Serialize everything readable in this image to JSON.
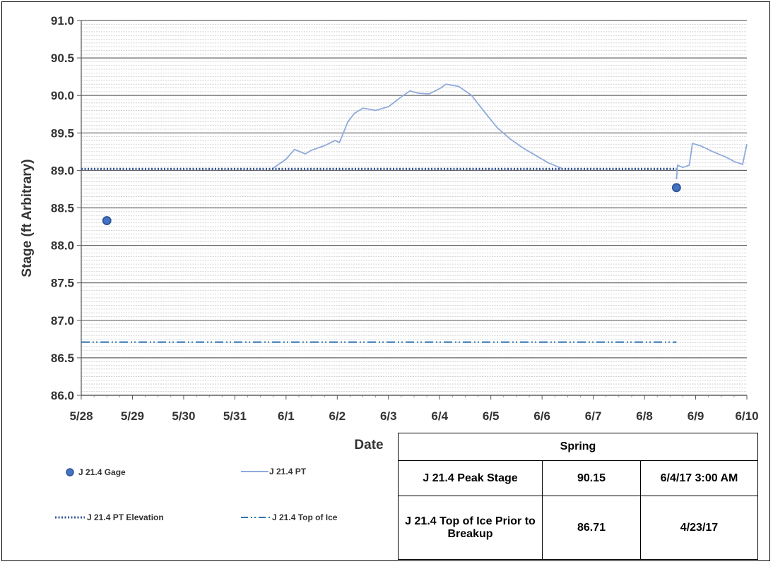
{
  "chart_data": {
    "type": "line",
    "xlabel": "Date",
    "ylabel": "Stage (ft Arbitrary)",
    "x_tick_labels": [
      "5/28",
      "5/29",
      "5/30",
      "5/31",
      "6/1",
      "6/2",
      "6/3",
      "6/4",
      "6/5",
      "6/6",
      "6/7",
      "6/8",
      "6/9",
      "6/10"
    ],
    "xlim": [
      "2017-05-28",
      "2017-06-10"
    ],
    "ylim": [
      86.0,
      91.0
    ],
    "y_major_step": 0.5,
    "y_tick_labels": [
      "86.0",
      "86.5",
      "87.0",
      "87.5",
      "88.0",
      "88.5",
      "89.0",
      "89.5",
      "90.0",
      "90.5",
      "91.0"
    ],
    "y_minor_step": 0.05,
    "grid": "major and minor horizontal",
    "legend_position": "bottom-left",
    "series": [
      {
        "name": "J 21.4 Gage",
        "style": "markers",
        "color": "#4472C4",
        "points": [
          {
            "x": "2017-05-28 12:00",
            "y": 88.33
          },
          {
            "x": "2017-06-08 15:00",
            "y": 88.77
          }
        ]
      },
      {
        "name": "J 21.4 PT",
        "style": "line",
        "color": "#8FAADC",
        "points": [
          {
            "x": "2017-05-31 18:00",
            "y": 89.03
          },
          {
            "x": "2017-06-01 00:00",
            "y": 89.15
          },
          {
            "x": "2017-06-01 04:00",
            "y": 89.28
          },
          {
            "x": "2017-06-01 09:00",
            "y": 89.22
          },
          {
            "x": "2017-06-01 12:00",
            "y": 89.27
          },
          {
            "x": "2017-06-01 18:00",
            "y": 89.33
          },
          {
            "x": "2017-06-01 23:00",
            "y": 89.4
          },
          {
            "x": "2017-06-02 01:00",
            "y": 89.37
          },
          {
            "x": "2017-06-02 05:00",
            "y": 89.65
          },
          {
            "x": "2017-06-02 08:00",
            "y": 89.76
          },
          {
            "x": "2017-06-02 12:00",
            "y": 89.83
          },
          {
            "x": "2017-06-02 18:00",
            "y": 89.8
          },
          {
            "x": "2017-06-03 00:00",
            "y": 89.85
          },
          {
            "x": "2017-06-03 06:00",
            "y": 89.98
          },
          {
            "x": "2017-06-03 10:00",
            "y": 90.06
          },
          {
            "x": "2017-06-03 14:00",
            "y": 90.03
          },
          {
            "x": "2017-06-03 19:00",
            "y": 90.02
          },
          {
            "x": "2017-06-04 00:00",
            "y": 90.09
          },
          {
            "x": "2017-06-04 03:00",
            "y": 90.15
          },
          {
            "x": "2017-06-04 09:00",
            "y": 90.12
          },
          {
            "x": "2017-06-04 15:00",
            "y": 90.0
          },
          {
            "x": "2017-06-04 21:00",
            "y": 89.78
          },
          {
            "x": "2017-06-05 03:00",
            "y": 89.57
          },
          {
            "x": "2017-06-05 09:00",
            "y": 89.42
          },
          {
            "x": "2017-06-05 15:00",
            "y": 89.3
          },
          {
            "x": "2017-06-05 21:00",
            "y": 89.2
          },
          {
            "x": "2017-06-06 03:00",
            "y": 89.1
          },
          {
            "x": "2017-06-06 09:00",
            "y": 89.03
          }
        ]
      },
      {
        "name": "J 21.4 PT",
        "style": "line",
        "color": "#8FAADC",
        "points": [
          {
            "x": "2017-06-08 15:00",
            "y": 88.88
          },
          {
            "x": "2017-06-08 15:30",
            "y": 89.07
          },
          {
            "x": "2017-06-08 18:00",
            "y": 89.04
          },
          {
            "x": "2017-06-08 21:00",
            "y": 89.07
          },
          {
            "x": "2017-06-08 22:30",
            "y": 89.36
          },
          {
            "x": "2017-06-09 03:00",
            "y": 89.32
          },
          {
            "x": "2017-06-09 08:00",
            "y": 89.25
          },
          {
            "x": "2017-06-09 14:00",
            "y": 89.18
          },
          {
            "x": "2017-06-09 18:00",
            "y": 89.12
          },
          {
            "x": "2017-06-09 22:00",
            "y": 89.08
          },
          {
            "x": "2017-06-10 00:00",
            "y": 89.35
          }
        ]
      },
      {
        "name": "J 21.4 PT Elevation",
        "style": "dotted",
        "color": "#2F5597",
        "points": [
          {
            "x": "2017-05-28 00:00",
            "y": 89.02
          },
          {
            "x": "2017-06-08 15:00",
            "y": 89.02
          }
        ]
      },
      {
        "name": "J 21.4 Top of Ice",
        "style": "dash-dot-dot",
        "color": "#2E75B6",
        "points": [
          {
            "x": "2017-05-28 00:00",
            "y": 86.71
          },
          {
            "x": "2017-06-08 15:00",
            "y": 86.71
          }
        ]
      }
    ]
  },
  "legend": [
    {
      "label": "J 21.4 Gage"
    },
    {
      "label": "J 21.4 PT"
    },
    {
      "label": "J 21.4 PT Elevation"
    },
    {
      "label": "J 21.4 Top of Ice"
    }
  ],
  "table": {
    "header": "Spring",
    "rows": [
      {
        "label": "J 21.4 Peak Stage",
        "value": "90.15",
        "date": "6/4/17 3:00 AM"
      },
      {
        "label": "J 21.4 Top of Ice Prior to Breakup",
        "value": "86.71",
        "date": "4/23/17"
      }
    ]
  }
}
